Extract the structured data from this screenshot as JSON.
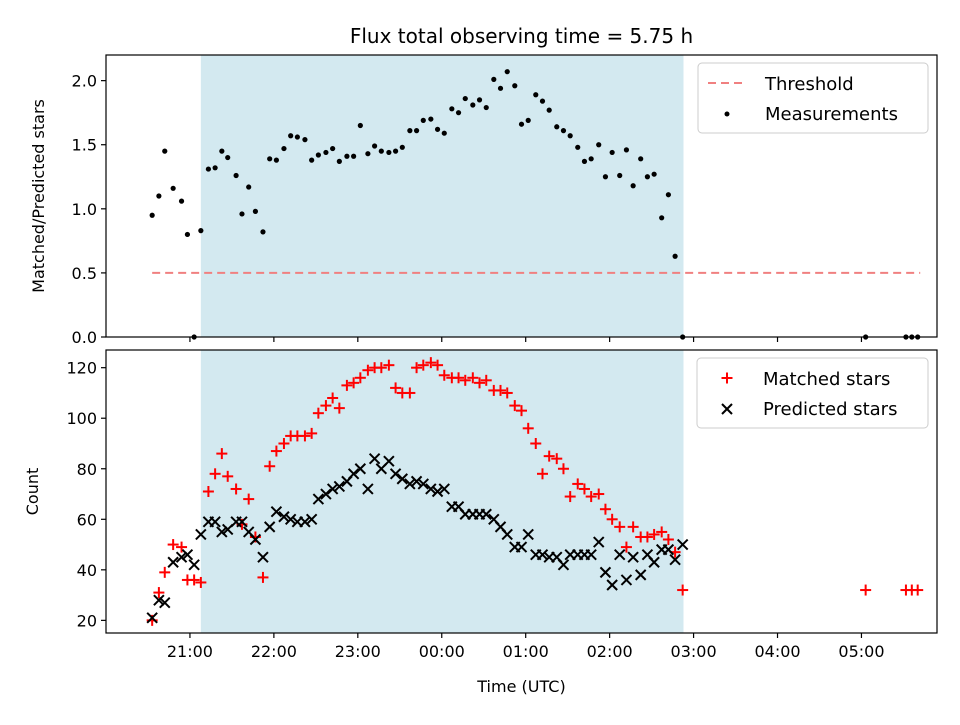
{
  "chart_data": [
    {
      "type": "scatter",
      "title": "Flux total observing time = 5.75 h",
      "xlabel": "",
      "ylabel": "Matched/Predicted stars",
      "ylim": [
        0,
        2.2
      ],
      "yticks": [
        "0.0",
        "0.5",
        "1.0",
        "1.5",
        "2.0"
      ],
      "ytick_values": [
        0,
        0.5,
        1.0,
        1.5,
        2.0
      ],
      "xlim_hours": [
        20.0,
        29.9
      ],
      "xtick_hours": [
        21,
        22,
        23,
        24,
        25,
        26,
        27,
        28,
        29
      ],
      "shaded_span_hours": [
        21.13,
        26.88
      ],
      "shaded_color": "#d3e9f0",
      "legend_position": "top-right",
      "threshold": {
        "name": "Threshold",
        "value": 0.5,
        "x_range": [
          20.55,
          29.7
        ],
        "color": "#f08080"
      },
      "series": [
        {
          "name": "Measurements",
          "color": "#000000",
          "x": [
            20.55,
            20.63,
            20.7,
            20.8,
            20.9,
            20.97,
            21.05,
            21.13,
            21.22,
            21.3,
            21.38,
            21.45,
            21.55,
            21.62,
            21.7,
            21.78,
            21.87,
            21.95,
            22.03,
            22.12,
            22.2,
            22.28,
            22.37,
            22.45,
            22.53,
            22.62,
            22.7,
            22.78,
            22.87,
            22.95,
            23.03,
            23.12,
            23.2,
            23.28,
            23.37,
            23.45,
            23.53,
            23.62,
            23.7,
            23.78,
            23.87,
            23.95,
            24.03,
            24.12,
            24.2,
            24.28,
            24.37,
            24.45,
            24.53,
            24.62,
            24.7,
            24.78,
            24.87,
            24.95,
            25.03,
            25.12,
            25.2,
            25.28,
            25.37,
            25.45,
            25.53,
            25.62,
            25.7,
            25.78,
            25.87,
            25.95,
            26.03,
            26.12,
            26.2,
            26.28,
            26.37,
            26.45,
            26.53,
            26.62,
            26.7,
            26.78,
            26.87,
            29.05,
            29.53,
            29.6,
            29.67
          ],
          "y": [
            0.95,
            1.1,
            1.45,
            1.16,
            1.06,
            0.8,
            0.0,
            0.83,
            1.31,
            1.32,
            1.45,
            1.4,
            1.26,
            0.96,
            1.17,
            0.98,
            0.82,
            1.39,
            1.38,
            1.47,
            1.57,
            1.56,
            1.54,
            1.38,
            1.42,
            1.44,
            1.47,
            1.37,
            1.41,
            1.41,
            1.65,
            1.43,
            1.49,
            1.45,
            1.44,
            1.45,
            1.48,
            1.61,
            1.61,
            1.69,
            1.7,
            1.62,
            1.59,
            1.78,
            1.75,
            1.86,
            1.81,
            1.85,
            1.79,
            2.01,
            1.94,
            2.07,
            1.96,
            1.66,
            1.69,
            1.89,
            1.84,
            1.77,
            1.64,
            1.61,
            1.57,
            1.48,
            1.37,
            1.39,
            1.5,
            1.25,
            1.44,
            1.26,
            1.46,
            1.18,
            1.39,
            1.25,
            1.27,
            0.93,
            1.11,
            0.63,
            0.0,
            0.0,
            0.0,
            0.0,
            0.0
          ]
        }
      ]
    },
    {
      "type": "scatter",
      "title": "",
      "xlabel": "Time (UTC)",
      "ylabel": "Count",
      "ylim": [
        15,
        127
      ],
      "yticks": [
        "20",
        "40",
        "60",
        "80",
        "100",
        "120"
      ],
      "ytick_values": [
        20,
        40,
        60,
        80,
        100,
        120
      ],
      "xlim_hours": [
        20.0,
        29.9
      ],
      "xtick_hours": [
        21,
        22,
        23,
        24,
        25,
        26,
        27,
        28,
        29
      ],
      "xticks": [
        "21:00",
        "22:00",
        "23:00",
        "00:00",
        "01:00",
        "02:00",
        "03:00",
        "04:00",
        "05:00"
      ],
      "shaded_span_hours": [
        21.13,
        26.88
      ],
      "shaded_color": "#d3e9f0",
      "legend_position": "top-right",
      "series": [
        {
          "name": "Matched stars",
          "marker": "plus",
          "color": "#ff0000",
          "x": [
            20.55,
            20.63,
            20.7,
            20.8,
            20.9,
            20.97,
            21.05,
            21.13,
            21.22,
            21.3,
            21.38,
            21.45,
            21.55,
            21.62,
            21.7,
            21.78,
            21.87,
            21.95,
            22.03,
            22.12,
            22.2,
            22.28,
            22.37,
            22.45,
            22.53,
            22.62,
            22.7,
            22.78,
            22.87,
            22.95,
            23.03,
            23.12,
            23.2,
            23.28,
            23.37,
            23.45,
            23.53,
            23.62,
            23.7,
            23.78,
            23.87,
            23.95,
            24.03,
            24.12,
            24.2,
            24.28,
            24.37,
            24.45,
            24.53,
            24.62,
            24.7,
            24.78,
            24.87,
            24.95,
            25.03,
            25.12,
            25.2,
            25.28,
            25.37,
            25.45,
            25.53,
            25.62,
            25.7,
            25.78,
            25.87,
            25.95,
            26.03,
            26.12,
            26.2,
            26.28,
            26.37,
            26.45,
            26.53,
            26.62,
            26.7,
            26.78,
            26.87,
            29.05,
            29.53,
            29.6,
            29.67
          ],
          "y": [
            20,
            31,
            39,
            50,
            49,
            36,
            36,
            35,
            71,
            78,
            86,
            77,
            72,
            58,
            68,
            53,
            37,
            81,
            87,
            90,
            93,
            93,
            93,
            94,
            102,
            105,
            108,
            104,
            113,
            114,
            116,
            119,
            120,
            120,
            121,
            112,
            110,
            110,
            120,
            121,
            122,
            121,
            117,
            116,
            116,
            115,
            116,
            114,
            115,
            111,
            111,
            110,
            105,
            103,
            96,
            90,
            78,
            85,
            84,
            80,
            69,
            74,
            72,
            69,
            70,
            64,
            60,
            57,
            49,
            57,
            53,
            53,
            54,
            55,
            52,
            47,
            32,
            32,
            32,
            32,
            32
          ]
        },
        {
          "name": "Predicted stars",
          "marker": "x",
          "color": "#000000",
          "x": [
            20.55,
            20.63,
            20.7,
            20.8,
            20.9,
            20.97,
            21.05,
            21.13,
            21.22,
            21.3,
            21.38,
            21.45,
            21.55,
            21.62,
            21.7,
            21.78,
            21.87,
            21.95,
            22.03,
            22.12,
            22.2,
            22.28,
            22.37,
            22.45,
            22.53,
            22.62,
            22.7,
            22.78,
            22.87,
            22.95,
            23.03,
            23.12,
            23.2,
            23.28,
            23.37,
            23.45,
            23.53,
            23.62,
            23.7,
            23.78,
            23.87,
            23.95,
            24.03,
            24.12,
            24.2,
            24.28,
            24.37,
            24.45,
            24.53,
            24.62,
            24.7,
            24.78,
            24.87,
            24.95,
            25.03,
            25.12,
            25.2,
            25.28,
            25.37,
            25.45,
            25.53,
            25.62,
            25.7,
            25.78,
            25.87,
            25.95,
            26.03,
            26.12,
            26.2,
            26.28,
            26.37,
            26.45,
            26.53,
            26.62,
            26.7,
            26.78,
            26.87
          ],
          "y": [
            21,
            28,
            27,
            43,
            45,
            46,
            42,
            54,
            59,
            59,
            55,
            56,
            59,
            59,
            55,
            52,
            45,
            57,
            63,
            61,
            60,
            59,
            59,
            60,
            68,
            70,
            72,
            73,
            75,
            78,
            80,
            72,
            84,
            80,
            83,
            78,
            76,
            74,
            75,
            74,
            72,
            71,
            72,
            65,
            65,
            62,
            62,
            62,
            62,
            60,
            57,
            54,
            49,
            49,
            54,
            46,
            46,
            45,
            45,
            42,
            46,
            46,
            46,
            46,
            51,
            39,
            34,
            46,
            36,
            45,
            38,
            46,
            43,
            48,
            48,
            44,
            50
          ]
        }
      ]
    }
  ]
}
